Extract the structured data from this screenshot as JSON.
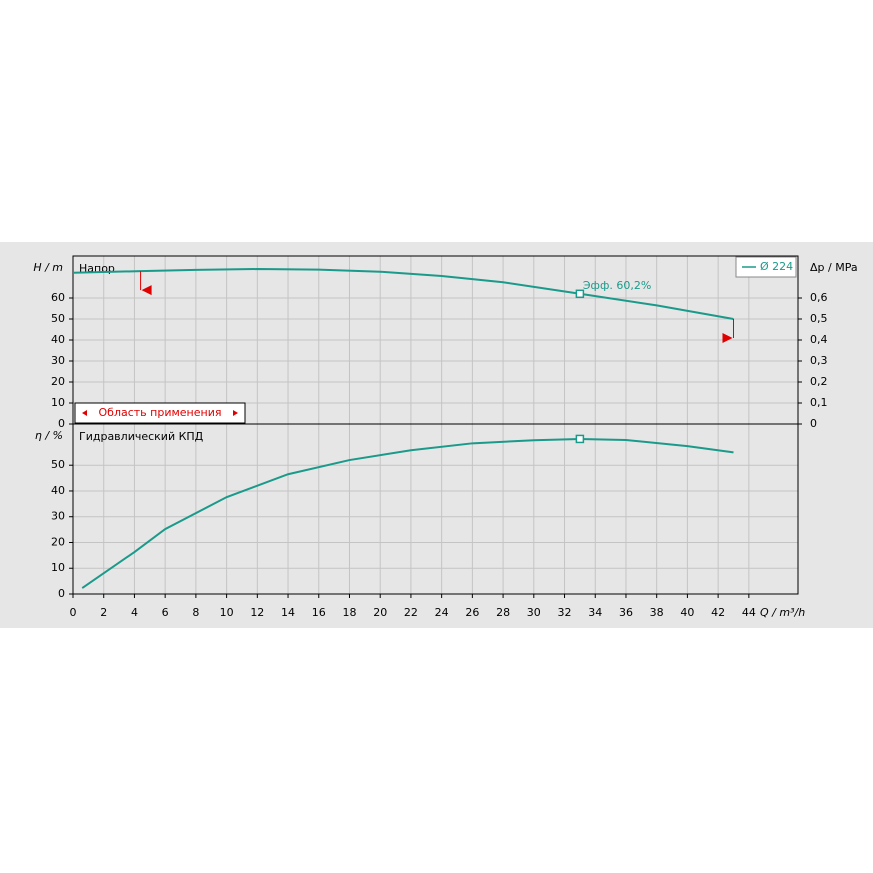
{
  "chart_data": [
    {
      "type": "line",
      "title": "Напор",
      "ylabel": "H / m",
      "y2label": "Δp / MPa",
      "x": [
        0,
        4.4,
        8,
        12,
        16,
        20,
        24,
        28,
        33,
        38,
        43
      ],
      "series": [
        {
          "name": "Ø 224",
          "color": "#1a9a8a",
          "values": [
            72,
            72.8,
            73.4,
            73.8,
            73.5,
            72.5,
            70.5,
            67.5,
            62,
            56.5,
            50
          ]
        }
      ],
      "xlim": [
        0,
        47.2
      ],
      "ylim": [
        0,
        80
      ],
      "yticks": [
        0,
        10,
        20,
        30,
        40,
        50,
        60
      ],
      "y2lim": [
        0,
        0.8
      ],
      "y2ticks": [
        0,
        {
          "value": 0.1,
          "label": "0,1"
        },
        {
          "value": 0.2,
          "label": "0,2"
        },
        {
          "value": 0.3,
          "label": "0,3"
        },
        {
          "value": 0.4,
          "label": "0,4"
        },
        {
          "value": 0.5,
          "label": "0,5"
        },
        {
          "value": 0.6,
          "label": "0,6"
        }
      ],
      "legend": "top-right",
      "grid": true,
      "application_range_label": "Область применения",
      "application_range": [
        4.4,
        43
      ],
      "duty_point": {
        "x": 33,
        "value": 62,
        "label": "Эфф.  60,2%"
      }
    },
    {
      "type": "line",
      "title": "Гидравлический КПД",
      "ylabel": "η / %",
      "xlabel": "Q / m³/h",
      "x": [
        0.6,
        4,
        6,
        10,
        14,
        18,
        22,
        26,
        30,
        33,
        36,
        40,
        43
      ],
      "series": [
        {
          "name": "Ø 224",
          "color": "#1a9a8a",
          "values": [
            2.3,
            16.3,
            25.2,
            37.6,
            46.5,
            52,
            55.8,
            58.5,
            59.7,
            60.2,
            59.8,
            57.4,
            55
          ]
        }
      ],
      "xlim": [
        0,
        47.2
      ],
      "xticks": [
        0,
        2,
        4,
        6,
        8,
        10,
        12,
        14,
        16,
        18,
        20,
        22,
        24,
        26,
        28,
        30,
        32,
        34,
        36,
        38,
        40,
        42,
        44
      ],
      "ylim": [
        0,
        66
      ],
      "yticks": [
        0,
        10,
        20,
        30,
        40,
        50
      ],
      "grid": true,
      "duty_point": {
        "x": 33,
        "value": 60.2
      }
    }
  ]
}
